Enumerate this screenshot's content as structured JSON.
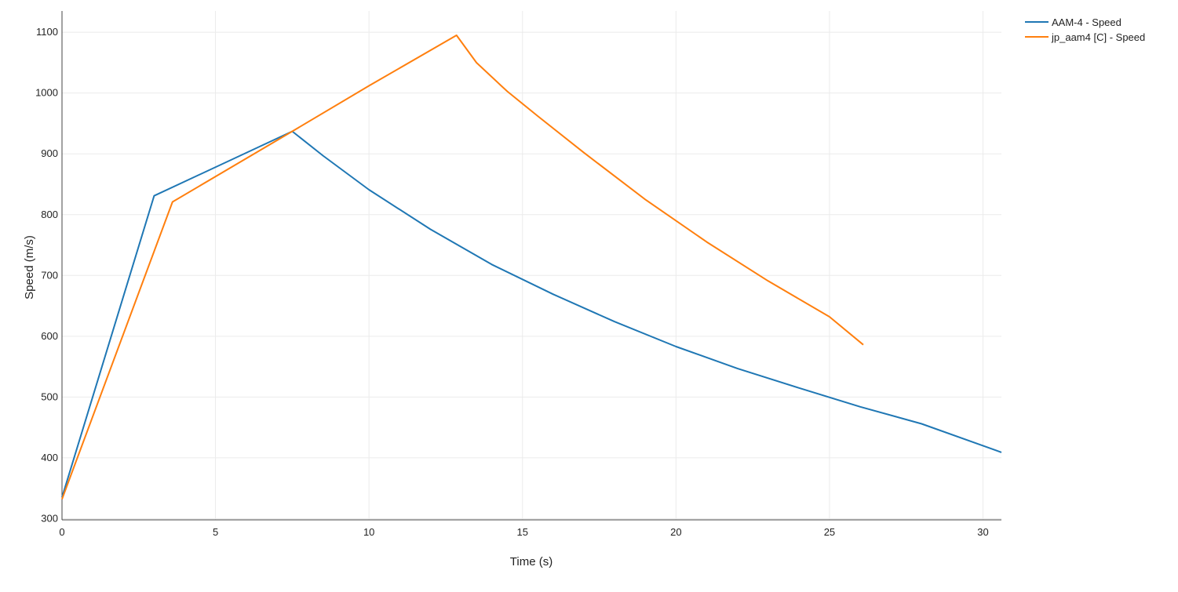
{
  "chart_data": {
    "type": "line",
    "title": "",
    "xlabel": "Time (s)",
    "ylabel": "Speed (m/s)",
    "xlim": [
      0,
      30.6
    ],
    "ylim": [
      298,
      1135
    ],
    "xticks": [
      0,
      5,
      10,
      15,
      20,
      25,
      30
    ],
    "yticks": [
      300,
      400,
      500,
      600,
      700,
      800,
      900,
      1000,
      1100
    ],
    "grid": true,
    "legend_position": "top-right",
    "series": [
      {
        "name": "AAM-4 - Speed",
        "color": "#1f77b4",
        "x": [
          0,
          3.0,
          7.5,
          8.5,
          10,
          12,
          14,
          16,
          18,
          20,
          22,
          24,
          26,
          28,
          30,
          30.6
        ],
        "y": [
          335,
          831,
          937,
          897,
          841,
          776,
          718,
          669,
          624,
          583,
          547,
          515,
          484,
          456,
          420,
          409
        ]
      },
      {
        "name": "jp_aam4 [C] - Speed",
        "color": "#ff7f0e",
        "x": [
          0,
          3.6,
          7.5,
          10,
          12.85,
          13.5,
          14.5,
          15.5,
          17,
          19,
          21,
          23,
          25,
          26.1
        ],
        "y": [
          332,
          821,
          937,
          1012,
          1095,
          1050,
          1003,
          962,
          902,
          825,
          755,
          691,
          632,
          586
        ]
      }
    ]
  }
}
